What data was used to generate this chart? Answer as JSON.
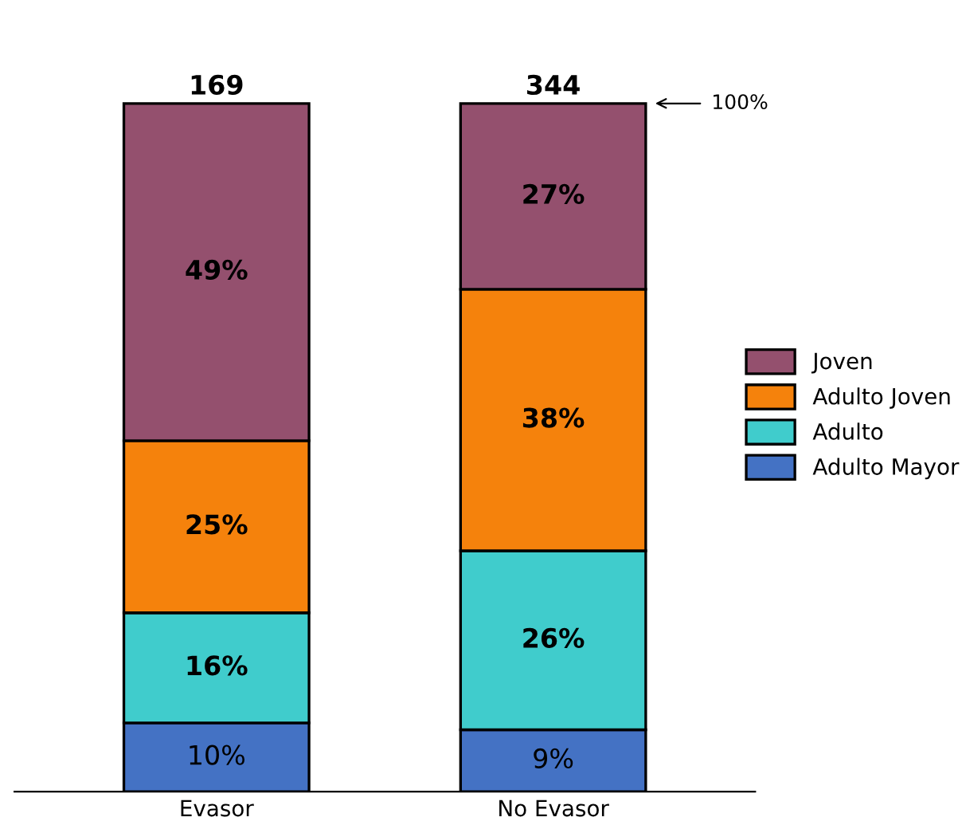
{
  "chart_data": {
    "type": "bar",
    "stacked": true,
    "categories": [
      "Evasor",
      "No Evasor"
    ],
    "series": [
      {
        "name": "Adulto Mayor",
        "color": "#4472c4",
        "values": [
          10,
          9
        ],
        "value_labels": [
          "10%",
          "9%"
        ]
      },
      {
        "name": "Adulto",
        "color": "#40cccc",
        "values": [
          16,
          26
        ],
        "value_labels": [
          "16%",
          "26%"
        ]
      },
      {
        "name": "Adulto Joven",
        "color": "#f5820c",
        "values": [
          25,
          38
        ],
        "value_labels": [
          "25%",
          "38%"
        ]
      },
      {
        "name": "Joven",
        "color": "#94506e",
        "values": [
          49,
          27
        ],
        "value_labels": [
          "49%",
          "27%"
        ]
      }
    ],
    "annotations": [
      {
        "text": "169",
        "x": "Evasor",
        "y": 100
      },
      {
        "text": "344",
        "x": "No Evasor",
        "y": 100
      },
      "100%"
    ],
    "legend": "right",
    "grid": false
  }
}
